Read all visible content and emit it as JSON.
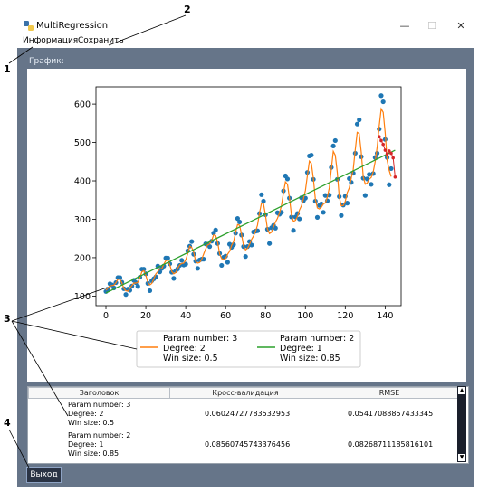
{
  "window": {
    "title": "MultiRegression"
  },
  "menu": {
    "items": [
      "Информация",
      "Сохранить"
    ]
  },
  "graph_label": "График:",
  "annotations": [
    "1",
    "2",
    "3",
    "4"
  ],
  "chart_data": {
    "type": "line",
    "x_ticks": [
      0,
      20,
      40,
      60,
      80,
      100,
      120,
      140
    ],
    "y_ticks": [
      100,
      200,
      300,
      400,
      500,
      600
    ],
    "xlim": [
      -5,
      148
    ],
    "ylim": [
      75,
      645
    ],
    "scatter": [
      [
        0,
        112
      ],
      [
        1,
        118
      ],
      [
        2,
        132
      ],
      [
        3,
        129
      ],
      [
        4,
        121
      ],
      [
        5,
        135
      ],
      [
        6,
        148
      ],
      [
        7,
        148
      ],
      [
        8,
        136
      ],
      [
        9,
        119
      ],
      [
        10,
        104
      ],
      [
        11,
        118
      ],
      [
        12,
        115
      ],
      [
        13,
        126
      ],
      [
        14,
        141
      ],
      [
        15,
        135
      ],
      [
        16,
        125
      ],
      [
        17,
        149
      ],
      [
        18,
        170
      ],
      [
        19,
        170
      ],
      [
        20,
        158
      ],
      [
        21,
        133
      ],
      [
        22,
        114
      ],
      [
        23,
        140
      ],
      [
        24,
        145
      ],
      [
        25,
        150
      ],
      [
        26,
        178
      ],
      [
        27,
        163
      ],
      [
        28,
        172
      ],
      [
        29,
        178
      ],
      [
        30,
        199
      ],
      [
        31,
        199
      ],
      [
        32,
        184
      ],
      [
        33,
        162
      ],
      [
        34,
        146
      ],
      [
        35,
        166
      ],
      [
        36,
        171
      ],
      [
        37,
        180
      ],
      [
        38,
        193
      ],
      [
        39,
        181
      ],
      [
        40,
        183
      ],
      [
        41,
        218
      ],
      [
        42,
        230
      ],
      [
        43,
        242
      ],
      [
        44,
        209
      ],
      [
        45,
        191
      ],
      [
        46,
        172
      ],
      [
        47,
        194
      ],
      [
        48,
        196
      ],
      [
        49,
        196
      ],
      [
        50,
        236
      ],
      [
        51,
        235
      ],
      [
        52,
        229
      ],
      [
        53,
        243
      ],
      [
        54,
        264
      ],
      [
        55,
        272
      ],
      [
        56,
        237
      ],
      [
        57,
        211
      ],
      [
        58,
        180
      ],
      [
        59,
        201
      ],
      [
        60,
        204
      ],
      [
        61,
        188
      ],
      [
        62,
        235
      ],
      [
        63,
        227
      ],
      [
        64,
        234
      ],
      [
        65,
        264
      ],
      [
        66,
        302
      ],
      [
        67,
        293
      ],
      [
        68,
        259
      ],
      [
        69,
        229
      ],
      [
        70,
        203
      ],
      [
        71,
        229
      ],
      [
        72,
        242
      ],
      [
        73,
        233
      ],
      [
        74,
        267
      ],
      [
        75,
        269
      ],
      [
        76,
        270
      ],
      [
        77,
        315
      ],
      [
        78,
        364
      ],
      [
        79,
        347
      ],
      [
        80,
        312
      ],
      [
        81,
        274
      ],
      [
        82,
        237
      ],
      [
        83,
        278
      ],
      [
        84,
        284
      ],
      [
        85,
        277
      ],
      [
        86,
        317
      ],
      [
        87,
        313
      ],
      [
        88,
        318
      ],
      [
        89,
        374
      ],
      [
        90,
        413
      ],
      [
        91,
        405
      ],
      [
        92,
        355
      ],
      [
        93,
        306
      ],
      [
        94,
        271
      ],
      [
        95,
        306
      ],
      [
        96,
        315
      ],
      [
        97,
        301
      ],
      [
        98,
        356
      ],
      [
        99,
        348
      ],
      [
        100,
        355
      ],
      [
        101,
        422
      ],
      [
        102,
        465
      ],
      [
        103,
        467
      ],
      [
        104,
        404
      ],
      [
        105,
        347
      ],
      [
        106,
        305
      ],
      [
        107,
        336
      ],
      [
        108,
        340
      ],
      [
        109,
        318
      ],
      [
        110,
        362
      ],
      [
        111,
        348
      ],
      [
        112,
        363
      ],
      [
        113,
        435
      ],
      [
        114,
        491
      ],
      [
        115,
        505
      ],
      [
        116,
        404
      ],
      [
        117,
        359
      ],
      [
        118,
        310
      ],
      [
        119,
        337
      ],
      [
        120,
        360
      ],
      [
        121,
        342
      ],
      [
        122,
        406
      ],
      [
        123,
        396
      ],
      [
        124,
        420
      ],
      [
        125,
        472
      ],
      [
        126,
        548
      ],
      [
        127,
        559
      ],
      [
        128,
        463
      ],
      [
        129,
        407
      ],
      [
        130,
        362
      ],
      [
        131,
        405
      ],
      [
        132,
        417
      ],
      [
        133,
        391
      ],
      [
        134,
        419
      ],
      [
        135,
        461
      ],
      [
        136,
        472
      ],
      [
        137,
        535
      ],
      [
        138,
        622
      ],
      [
        139,
        606
      ],
      [
        140,
        508
      ],
      [
        141,
        461
      ],
      [
        142,
        390
      ],
      [
        143,
        432
      ]
    ],
    "forecast": [
      [
        137,
        515
      ],
      [
        138,
        505
      ],
      [
        139,
        495
      ],
      [
        140,
        480
      ],
      [
        141,
        470
      ],
      [
        142,
        478
      ],
      [
        143,
        472
      ],
      [
        144,
        460
      ],
      [
        145,
        410
      ]
    ],
    "trend": [
      [
        0,
        108
      ],
      [
        145,
        480
      ]
    ],
    "legend": [
      {
        "title": "Param number: 3",
        "degree": "Degree: 2",
        "win": "Win size: 0.5",
        "color": "#ff7f0e"
      },
      {
        "title": "Param number: 2",
        "degree": "Degree: 1",
        "win": "Win size: 0.85",
        "color": "#2ca02c"
      }
    ],
    "colors": {
      "scatter": "#1f77b4",
      "forecast": "#d62728"
    }
  },
  "table": {
    "headers": [
      "Заголовок",
      "Кросс-валидация",
      "RMSE"
    ],
    "rows": [
      {
        "title": [
          "Param number: 3",
          "Degree: 2",
          "Win size: 0.5"
        ],
        "cv": "0.06024727783532953",
        "rmse": "0.05417088857433345"
      },
      {
        "title": [
          "Param number: 2",
          "Degree: 1",
          "Win size: 0.85"
        ],
        "cv": "0.08560745743376456",
        "rmse": "0.08268711185816101"
      }
    ]
  },
  "exit_label": "Выход"
}
